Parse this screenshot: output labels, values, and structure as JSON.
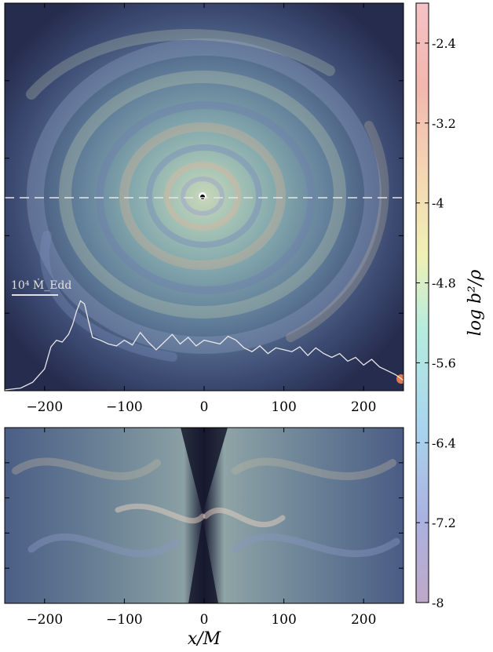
{
  "chart_data": [
    {
      "type": "heatmap",
      "panel": "top",
      "xlim": [
        -250,
        250
      ],
      "xticks": [
        -200,
        -100,
        0,
        100,
        200
      ],
      "xtick_labels": [
        "−200",
        "−100",
        "0",
        "100",
        "200"
      ],
      "scale_bar_label": "10⁴ Ṁ_Edd",
      "accretion_rate_curve": {
        "x": [
          -250,
          -230,
          -215,
          -200,
          -192,
          -185,
          -178,
          -170,
          -165,
          -160,
          -155,
          -150,
          -145,
          -140,
          -130,
          -120,
          -110,
          -100,
          -90,
          -80,
          -70,
          -60,
          -50,
          -40,
          -30,
          -20,
          -10,
          0,
          10,
          20,
          30,
          40,
          50,
          60,
          70,
          80,
          90,
          100,
          110,
          120,
          130,
          140,
          150,
          160,
          170,
          180,
          190,
          200,
          210,
          220,
          230,
          240,
          250
        ],
        "y": [
          0.0,
          0.02,
          0.08,
          0.22,
          0.45,
          0.52,
          0.5,
          0.58,
          0.68,
          0.82,
          0.93,
          0.9,
          0.72,
          0.55,
          0.52,
          0.48,
          0.46,
          0.52,
          0.47,
          0.6,
          0.5,
          0.42,
          0.5,
          0.58,
          0.48,
          0.55,
          0.46,
          0.52,
          0.5,
          0.48,
          0.56,
          0.52,
          0.44,
          0.4,
          0.46,
          0.38,
          0.44,
          0.42,
          0.4,
          0.45,
          0.36,
          0.44,
          0.38,
          0.34,
          0.38,
          0.3,
          0.34,
          0.26,
          0.32,
          0.24,
          0.2,
          0.16,
          0.1
        ]
      }
    },
    {
      "type": "heatmap",
      "panel": "bottom",
      "xlim": [
        -250,
        250
      ],
      "xticks": [
        -200,
        -100,
        0,
        100,
        200
      ],
      "xtick_labels": [
        "−200",
        "−100",
        "0",
        "100",
        "200"
      ],
      "xlabel": "x/M"
    },
    {
      "type": "colorbar",
      "label": "log b²/ρ",
      "range": [
        -8,
        -2
      ],
      "ticks": [
        -2.4,
        -3.2,
        -4,
        -4.8,
        -5.6,
        -6.4,
        -7.2,
        -8
      ],
      "tick_labels": [
        "-2.4",
        "-3.2",
        "-4",
        "-4.8",
        "-5.6",
        "-6.4",
        "-7.2",
        "-8"
      ],
      "colors": [
        "#bfa8c8",
        "#aab2e0",
        "#a9d6ee",
        "#b7ecdd",
        "#f0f0b5",
        "#f4d6b4",
        "#f2b7ae",
        "#f5c2c6"
      ]
    }
  ]
}
